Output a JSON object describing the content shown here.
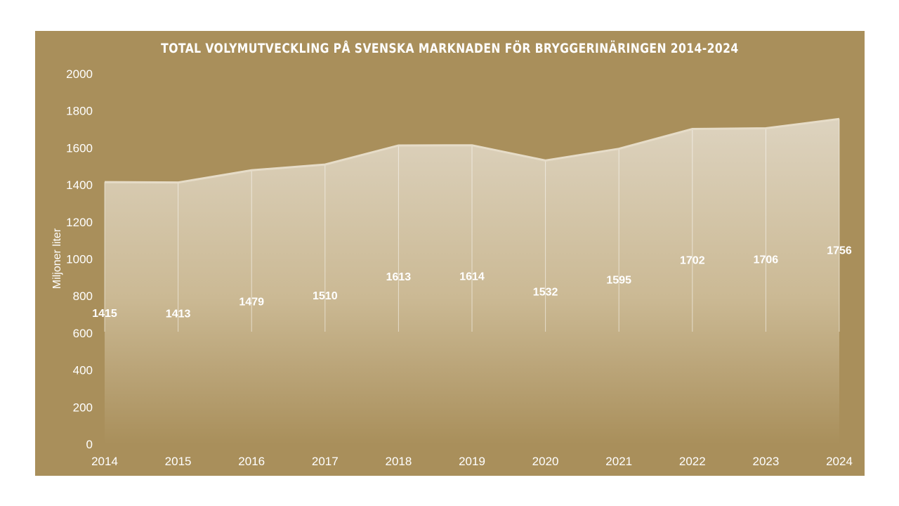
{
  "chart_data": {
    "type": "area",
    "title": "Total volymutveckling på svenska marknaden för bryggerinäringen 2014-2024",
    "xlabel": "",
    "ylabel": "Miljoner liter",
    "categories": [
      "2014",
      "2015",
      "2016",
      "2017",
      "2018",
      "2019",
      "2020",
      "2021",
      "2022",
      "2023",
      "2024"
    ],
    "values": [
      1415,
      1413,
      1479,
      1510,
      1613,
      1614,
      1532,
      1595,
      1702,
      1706,
      1756
    ],
    "ylim": [
      0,
      2000
    ],
    "yticks": [
      0,
      200,
      400,
      600,
      800,
      1000,
      1200,
      1400,
      1600,
      1800,
      2000
    ],
    "grid": false,
    "legend": "none",
    "data_labels": true
  },
  "colors": {
    "background": "#a98f5b",
    "area_top": "#ddd3bf",
    "area_bottom": "#a98f5b",
    "line": "#e6dcc8",
    "text": "#ffffff"
  }
}
